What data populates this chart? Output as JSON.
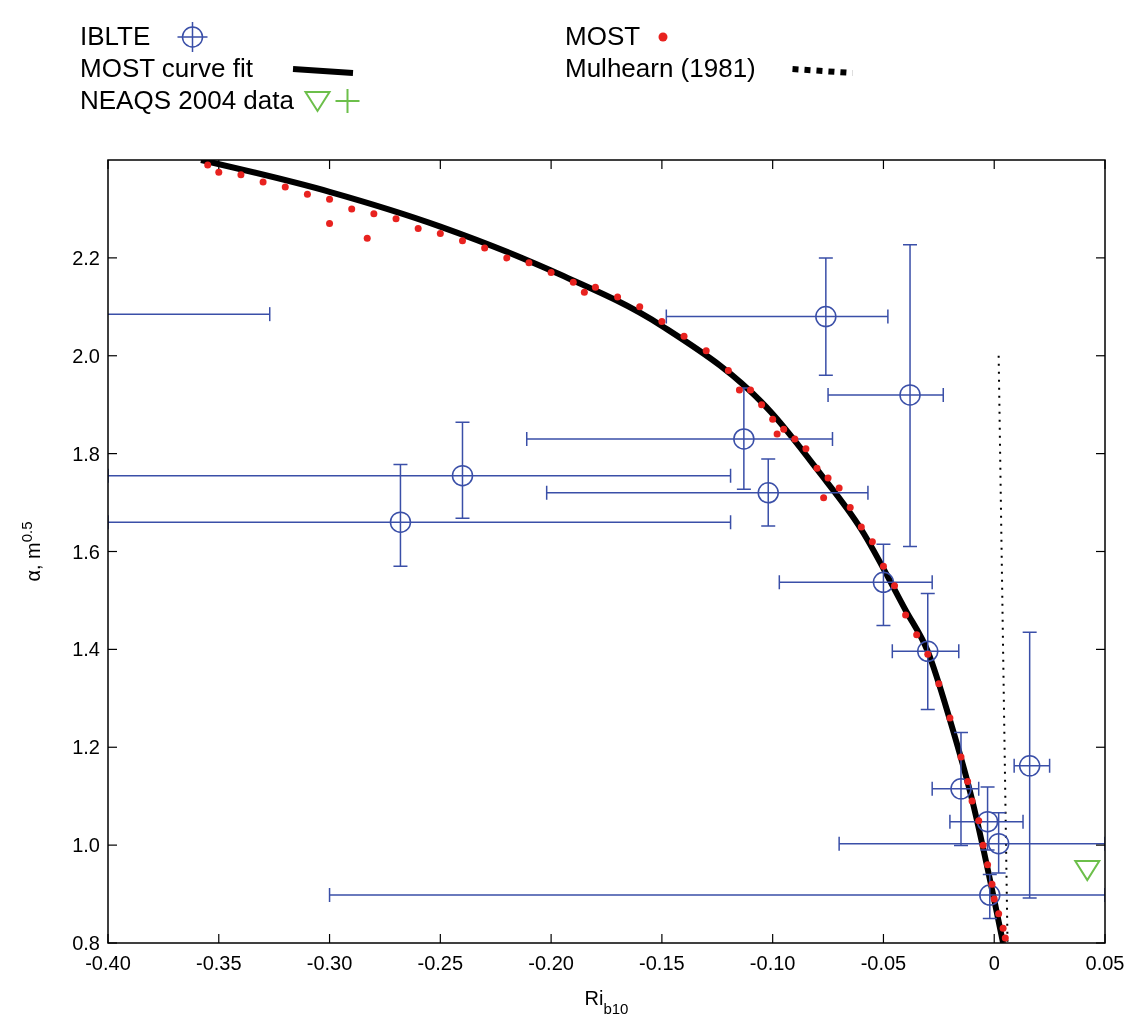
{
  "chart_data": {
    "type": "scatter",
    "xlabel": "Ri$_{b10}$",
    "ylabel": "α, m$^{0.5}$",
    "xlim": [
      -0.4,
      0.05
    ],
    "ylim": [
      0.8,
      2.4
    ],
    "xticks": [
      {
        "value": -0.4,
        "label": "-0.40"
      },
      {
        "value": -0.35,
        "label": "-0.35"
      },
      {
        "value": -0.3,
        "label": "-0.30"
      },
      {
        "value": -0.25,
        "label": "-0.25"
      },
      {
        "value": -0.2,
        "label": "-0.20"
      },
      {
        "value": -0.15,
        "label": "-0.15"
      },
      {
        "value": -0.1,
        "label": "-0.10"
      },
      {
        "value": -0.05,
        "label": "-0.05"
      },
      {
        "value": 0,
        "label": "0"
      },
      {
        "value": 0.05,
        "label": "0.05"
      }
    ],
    "yticks": [
      {
        "value": 0.8,
        "label": "0.8"
      },
      {
        "value": 1,
        "label": "1.0"
      },
      {
        "value": 1.2,
        "label": "1.2"
      },
      {
        "value": 1.4,
        "label": "1.4"
      },
      {
        "value": 1.6,
        "label": "1.6"
      },
      {
        "value": 1.8,
        "label": "1.8"
      },
      {
        "value": 2,
        "label": "2.0"
      },
      {
        "value": 2.2,
        "label": "2.2"
      }
    ],
    "grid": false,
    "legend": "top",
    "series": [
      {
        "name": "IBLTE",
        "marker": "circle",
        "color": "#3a4fa8",
        "x": [
          -0.076,
          -0.038,
          -0.113,
          -0.102,
          -0.24,
          -0.268,
          -0.05,
          -0.03,
          -0.015,
          -0.003,
          0.002,
          0.016,
          -0.002
        ],
        "values": [
          2.08,
          1.92,
          1.83,
          1.72,
          1.755,
          1.66,
          1.537,
          1.396,
          1.115,
          1.048,
          1.003,
          1.162,
          0.898
        ],
        "xerrors": [
          [
            -0.148,
            -0.048
          ],
          [
            -0.075,
            -0.023
          ],
          [
            -0.211,
            -0.073
          ],
          [
            -0.202,
            -0.057
          ],
          [
            -0.4,
            -0.119
          ],
          [
            -0.4,
            -0.119
          ],
          [
            -0.097,
            -0.028
          ],
          [
            -0.046,
            -0.016
          ],
          [
            -0.028,
            -0.007
          ],
          [
            -0.02,
            0.013
          ],
          [
            -0.07,
            0.05
          ],
          [
            0.009,
            0.025
          ],
          [
            -0.3,
            0.05
          ]
        ],
        "errors": [
          [
            1.96,
            2.2
          ],
          [
            1.61,
            2.227
          ],
          [
            1.727,
            1.934
          ],
          [
            1.652,
            1.789
          ],
          [
            1.668,
            1.864
          ],
          [
            1.57,
            1.778
          ],
          [
            1.449,
            1.615
          ],
          [
            1.277,
            1.514
          ],
          [
            0.999,
            1.23
          ],
          [
            0.99,
            1.119
          ],
          [
            0.943,
            1.066
          ],
          [
            0.892,
            1.435
          ],
          [
            0.85,
            0.94
          ]
        ]
      },
      {
        "type": "line",
        "marker": "none",
        "line_style": "solid",
        "color": "#3a4fa8",
        "x": [
          -0.4,
          -0.327
        ],
        "values": [
          2.085,
          2.085
        ]
      },
      {
        "name": "MOST",
        "marker": "circle",
        "color": "#e8221f",
        "x": [
          -0.355,
          -0.35,
          -0.34,
          -0.33,
          -0.32,
          -0.31,
          -0.3,
          -0.3,
          -0.29,
          -0.283,
          -0.28,
          -0.27,
          -0.26,
          -0.25,
          -0.24,
          -0.23,
          -0.22,
          -0.21,
          -0.2,
          -0.19,
          -0.185,
          -0.18,
          -0.17,
          -0.16,
          -0.15,
          -0.14,
          -0.13,
          -0.12,
          -0.115,
          -0.11,
          -0.105,
          -0.1,
          -0.098,
          -0.095,
          -0.09,
          -0.085,
          -0.08,
          -0.077,
          -0.075,
          -0.07,
          -0.065,
          -0.06,
          -0.055,
          -0.05,
          -0.045,
          -0.04,
          -0.035,
          -0.03,
          -0.025,
          -0.02,
          -0.015,
          -0.012,
          -0.01,
          -0.007,
          -0.005,
          -0.003,
          -0.001,
          0,
          0.002,
          0.004,
          0.005
        ],
        "values": [
          2.39,
          2.375,
          2.37,
          2.355,
          2.345,
          2.33,
          2.32,
          2.27,
          2.3,
          2.24,
          2.29,
          2.28,
          2.26,
          2.25,
          2.235,
          2.22,
          2.2,
          2.19,
          2.17,
          2.15,
          2.13,
          2.14,
          2.12,
          2.1,
          2.07,
          2.04,
          2.01,
          1.97,
          1.93,
          1.93,
          1.9,
          1.87,
          1.84,
          1.85,
          1.83,
          1.81,
          1.77,
          1.71,
          1.75,
          1.73,
          1.69,
          1.65,
          1.62,
          1.57,
          1.53,
          1.47,
          1.43,
          1.39,
          1.33,
          1.26,
          1.18,
          1.13,
          1.09,
          1.05,
          1.0,
          0.96,
          0.92,
          0.89,
          0.86,
          0.83,
          0.81
        ]
      },
      {
        "name": "MOST curve fit",
        "type": "line",
        "marker": "none",
        "line_style": "solid",
        "color": "#000000",
        "x": [
          -0.358,
          -0.3,
          -0.25,
          -0.2,
          -0.15,
          -0.1,
          -0.08,
          -0.06,
          -0.04,
          -0.03,
          -0.02,
          -0.01,
          0,
          0.004
        ],
        "values": [
          2.4,
          2.335,
          2.264,
          2.174,
          2.061,
          1.881,
          1.768,
          1.645,
          1.48,
          1.396,
          1.256,
          1.093,
          0.888,
          0.8
        ]
      },
      {
        "name": "Mulhearn (1981)",
        "type": "line",
        "marker": "none",
        "line_style": "dotted",
        "color": "#000000",
        "x": [
          0.002,
          0.006
        ],
        "values": [
          2.0,
          0.8
        ]
      },
      {
        "name": "NEAQS 2004 data",
        "marker": "triangle",
        "color": "#6cbf4a",
        "x": [
          0.042
        ],
        "values": [
          0.949
        ]
      }
    ]
  }
}
